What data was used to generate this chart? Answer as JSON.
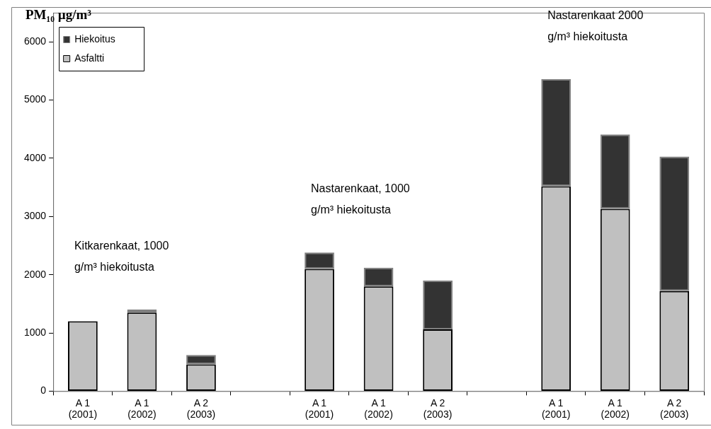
{
  "chart_data": {
    "type": "bar",
    "stacked": true,
    "ylabel": "PM₁₀ µg/m³",
    "categories": [
      "A 1\n(2001)",
      "A 1\n(2002)",
      "A 2\n(2003)",
      null,
      "A 1\n(2001)",
      "A 1\n(2002)",
      "A 2\n(2003)",
      null,
      "A 1\n(2001)",
      "A 1\n(2002)",
      "A 2\n(2003)"
    ],
    "series": [
      {
        "name": "Asfaltti",
        "color": "#c0c0c0",
        "values": [
          1200,
          1350,
          460,
          null,
          2100,
          1800,
          1060,
          null,
          3520,
          3130,
          1720
        ]
      },
      {
        "name": "Hiekoitus",
        "color": "#333333",
        "values": [
          0,
          50,
          160,
          null,
          280,
          320,
          840,
          null,
          1840,
          1280,
          2310
        ]
      }
    ],
    "ylim": [
      0,
      6500
    ],
    "yticks": [
      0,
      1000,
      2000,
      3000,
      4000,
      5000,
      6000
    ],
    "grid": false,
    "legend": "top left",
    "annotations": [
      "Kitkarenkaat, 1000\ng/m³ hiekoitusta",
      "Nastarenkaat, 1000\ng/m³ hiekoitusta",
      "Nastarenkaat 2000\ng/m³ hiekoitusta"
    ]
  }
}
